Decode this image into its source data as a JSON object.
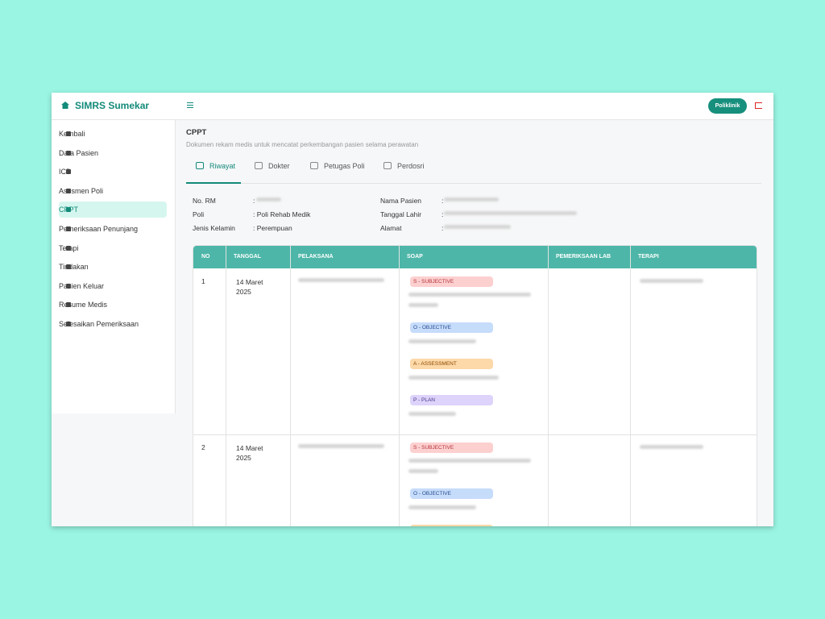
{
  "sidebar": {
    "brand": "SIMRS Sumekar",
    "menu": [
      "Kembali",
      "Data Pasien",
      "ICD",
      "Asesmen Poli",
      "CPPT",
      "Pemeriksaan Penunjang",
      "Terapi",
      "Tindakan",
      "Pasien Keluar",
      "Resume Medis",
      "Selesaikan Pemeriksaan"
    ],
    "active": 4
  },
  "topbar": {
    "button": "Poliklinik"
  },
  "page": {
    "title": "CPPT",
    "subtitle": "Dokumen rekam medis untuk mencatat perkembangan pasien selama perawatan"
  },
  "tabs": [
    "Riwayat",
    "Dokter",
    "Petugas Poli",
    "Perdosri"
  ],
  "patient": {
    "fields": [
      {
        "label": "No. RM",
        "value": ":"
      },
      {
        "label": "Poli",
        "value": ": Poli Rehab Medik"
      },
      {
        "label": "Jenis Kelamin",
        "value": ": Perempuan"
      },
      {
        "label": "Nama Pasien",
        "value": ":"
      },
      {
        "label": "Tanggal Lahir",
        "value": ":"
      },
      {
        "label": "Alamat",
        "value": ":"
      }
    ]
  },
  "table": {
    "headers": [
      "NO",
      "TANGGAL",
      "PELAKSANA",
      "SOAP",
      "PEMERIKSAAN LAB",
      "TERAPI"
    ],
    "rows": [
      {
        "no": 1,
        "tanggal": "14 Maret 2025",
        "soap": [
          "S - SUBJECTIVE",
          "O - OBJECTIVE",
          "A - ASSESSMENT",
          "P - PLAN"
        ]
      },
      {
        "no": 2,
        "tanggal": "14 Maret 2025",
        "soap": [
          "S - SUBJECTIVE",
          "O - OBJECTIVE"
        ]
      }
    ]
  }
}
